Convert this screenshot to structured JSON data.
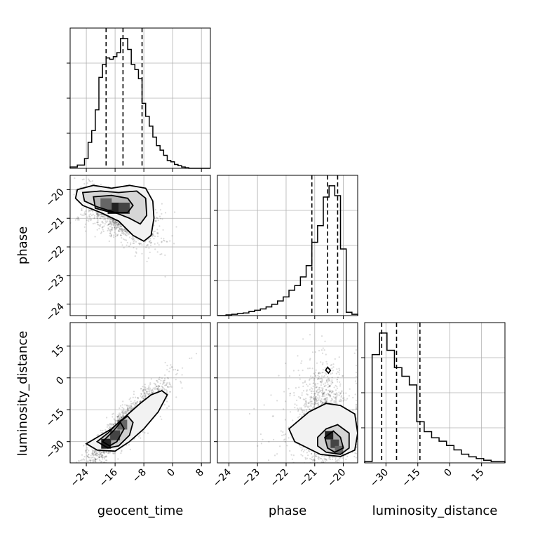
{
  "chart_data": {
    "type": "corner",
    "parameters": [
      "geocent_time",
      "phase",
      "luminosity_distance"
    ],
    "ranges": {
      "geocent_time": [
        -28.5,
        10.5
      ],
      "phase": [
        -24.4,
        -19.5
      ],
      "luminosity_distance": [
        -40,
        26
      ]
    },
    "ticks": {
      "geocent_time": [
        -24,
        -16,
        -8,
        0,
        8
      ],
      "phase": [
        -24,
        -23,
        -22,
        -21,
        -20
      ],
      "luminosity_distance": [
        -30,
        -15,
        0,
        15
      ]
    },
    "tick_labels": {
      "geocent_time": [
        "−24",
        "−16",
        "−8",
        "0",
        "8"
      ],
      "phase": [
        "−24",
        "−23",
        "−22",
        "−21",
        "−20"
      ],
      "luminosity_distance": [
        "−30",
        "−15",
        "0",
        "15"
      ]
    },
    "grid": true,
    "quantiles": {
      "geocent_time": [
        -18.5,
        -13.8,
        -8.5
      ],
      "phase": [
        -21.1,
        -20.55,
        -20.2
      ],
      "luminosity_distance": [
        -32,
        -25,
        -14
      ]
    },
    "histograms": {
      "geocent_time": {
        "edges": [
          -28.5,
          -26.5,
          -24.5,
          -23.5,
          -22.5,
          -21.5,
          -20.5,
          -19.5,
          -18.5,
          -17.5,
          -16.5,
          -15.5,
          -14.5,
          -13.5,
          -12.5,
          -11.5,
          -10.5,
          -9.5,
          -8.5,
          -7.5,
          -6.5,
          -5.5,
          -4.5,
          -3.5,
          -2.5,
          -1.5,
          -0.5,
          0.5,
          1.5,
          2.5,
          3.5,
          4.5,
          10.5
        ],
        "counts": [
          2,
          5,
          15,
          40,
          58,
          90,
          140,
          160,
          170,
          168,
          172,
          178,
          200,
          200,
          183,
          160,
          152,
          138,
          100,
          80,
          65,
          48,
          35,
          28,
          20,
          12,
          10,
          6,
          4,
          2,
          1,
          0
        ]
      },
      "phase": {
        "edges": [
          -24.4,
          -24.1,
          -23.9,
          -23.7,
          -23.5,
          -23.3,
          -23.1,
          -22.9,
          -22.7,
          -22.5,
          -22.3,
          -22.1,
          -21.9,
          -21.7,
          -21.5,
          -21.3,
          -21.1,
          -20.9,
          -20.7,
          -20.5,
          -20.3,
          -20.1,
          -19.9,
          -19.7,
          -19.5
        ],
        "counts": [
          0,
          1,
          2,
          3,
          4,
          6,
          8,
          10,
          13,
          17,
          22,
          28,
          38,
          45,
          58,
          75,
          110,
          135,
          178,
          195,
          180,
          100,
          5,
          2
        ]
      },
      "luminosity_distance": {
        "edges": [
          -40,
          -36.5,
          -33,
          -29.5,
          -26,
          -22.5,
          -19,
          -15.5,
          -12,
          -8.5,
          -5,
          -1.5,
          2,
          5.5,
          9,
          12.5,
          16,
          19.5,
          26
        ],
        "counts": [
          3,
          250,
          300,
          260,
          220,
          200,
          180,
          95,
          72,
          58,
          50,
          40,
          30,
          20,
          14,
          10,
          6,
          3
        ]
      }
    },
    "density_peaks": {
      "phase_vs_geocent_time": [
        [
          -16.5,
          -20.65
        ],
        [
          -13.5,
          -20.65
        ],
        [
          -18.5,
          -20.5
        ]
      ],
      "luminosity_distance_vs_geocent_time": [
        [
          -18.5,
          -31
        ],
        [
          -16,
          -27
        ],
        [
          -14,
          -22
        ]
      ],
      "luminosity_distance_vs_phase": [
        [
          -20.5,
          -27
        ],
        [
          -20.3,
          -31
        ],
        [
          -20.15,
          -34
        ]
      ]
    }
  }
}
